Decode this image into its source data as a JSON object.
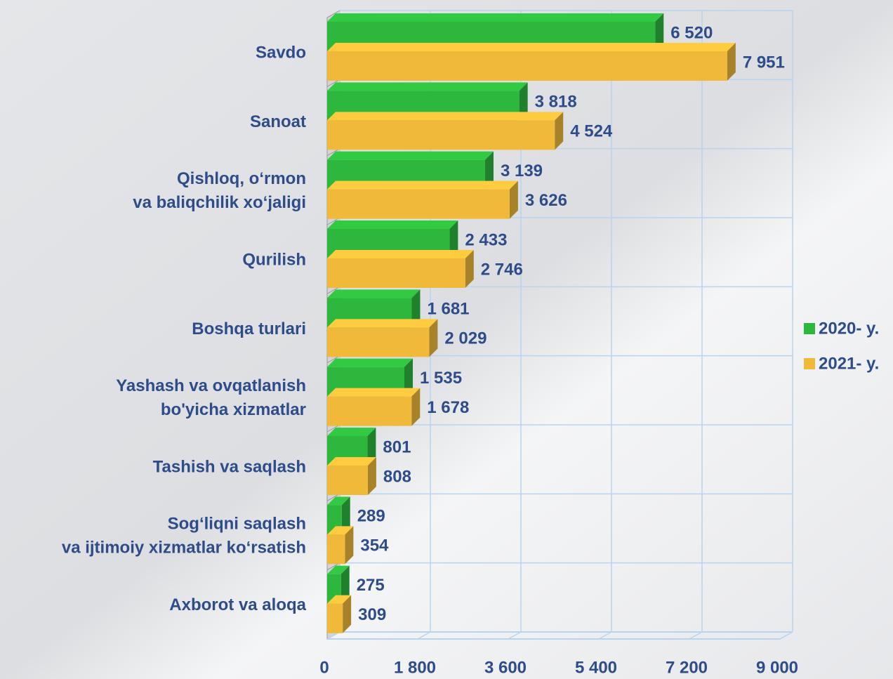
{
  "chart_data": {
    "type": "bar",
    "orientation": "horizontal",
    "categories": [
      "Savdo",
      "Sanoat",
      "Qishloq, o‘rmon\nva baliqchilik xo‘jaligi",
      "Qurilish",
      "Boshqa turlari",
      "Yashash va ovqatlanish\nbo'yicha xizmatlar",
      "Tashish va saqlash",
      "Sog‘liqni saqlash\nva ijtimoiy xizmatlar ko‘rsatish",
      "Axborot va aloqa"
    ],
    "series": [
      {
        "name": "2020- y.",
        "color": "#2db83d",
        "values": [
          6520,
          3818,
          3139,
          2433,
          1681,
          1535,
          801,
          289,
          275
        ],
        "value_labels": [
          "6 520",
          "3 818",
          "3 139",
          "2 433",
          "1 681",
          "1 535",
          "801",
          "289",
          "275"
        ]
      },
      {
        "name": "2021- y.",
        "color": "#f0b93a",
        "values": [
          7951,
          4524,
          3626,
          2746,
          2029,
          1678,
          808,
          354,
          309
        ],
        "value_labels": [
          "7 951",
          "4 524",
          "3 626",
          "2 746",
          "2 029",
          "1 678",
          "808",
          "354",
          "309"
        ]
      }
    ],
    "xlim": [
      0,
      9000
    ],
    "xticks": [
      0,
      {
        "value": 1800,
        "label": "1 800"
      },
      {
        "value": 3600,
        "label": "3 600"
      },
      {
        "value": 5400,
        "label": "5 400"
      },
      {
        "value": 7200,
        "label": "7 200"
      },
      {
        "value": 9000,
        "label": "9 000"
      }
    ],
    "grid": true,
    "legend": "right"
  }
}
